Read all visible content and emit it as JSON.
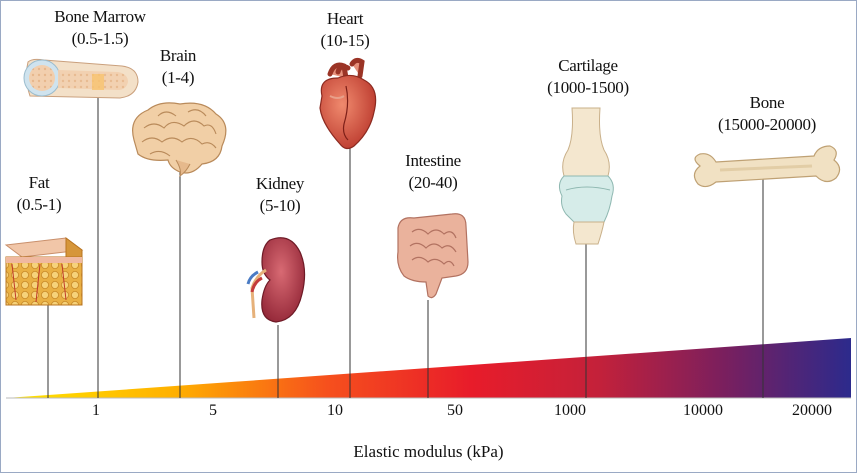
{
  "organs": [
    {
      "key": "fat",
      "name": "Fat",
      "range": "(0.5-1)"
    },
    {
      "key": "bone-marrow",
      "name": "Bone Marrow",
      "range": "(0.5-1.5)"
    },
    {
      "key": "brain",
      "name": "Brain",
      "range": "(1-4)"
    },
    {
      "key": "kidney",
      "name": "Kidney",
      "range": "(5-10)"
    },
    {
      "key": "heart",
      "name": "Heart",
      "range": "(10-15)"
    },
    {
      "key": "intestine",
      "name": "Intestine",
      "range": "(20-40)"
    },
    {
      "key": "cartilage",
      "name": "Cartilage",
      "range": "(1000-1500)"
    },
    {
      "key": "bone",
      "name": "Bone",
      "range": "(15000-20000)"
    }
  ],
  "axis": {
    "ticks": [
      "1",
      "5",
      "10",
      "50",
      "1000",
      "10000",
      "20000"
    ],
    "title": "Elastic modulus (kPa)"
  },
  "colors": {
    "gradient": [
      "#ffe600",
      "#ffb000",
      "#f6501d",
      "#e81c2a",
      "#c4213a",
      "#7a1f5e",
      "#2c2a8c"
    ]
  }
}
